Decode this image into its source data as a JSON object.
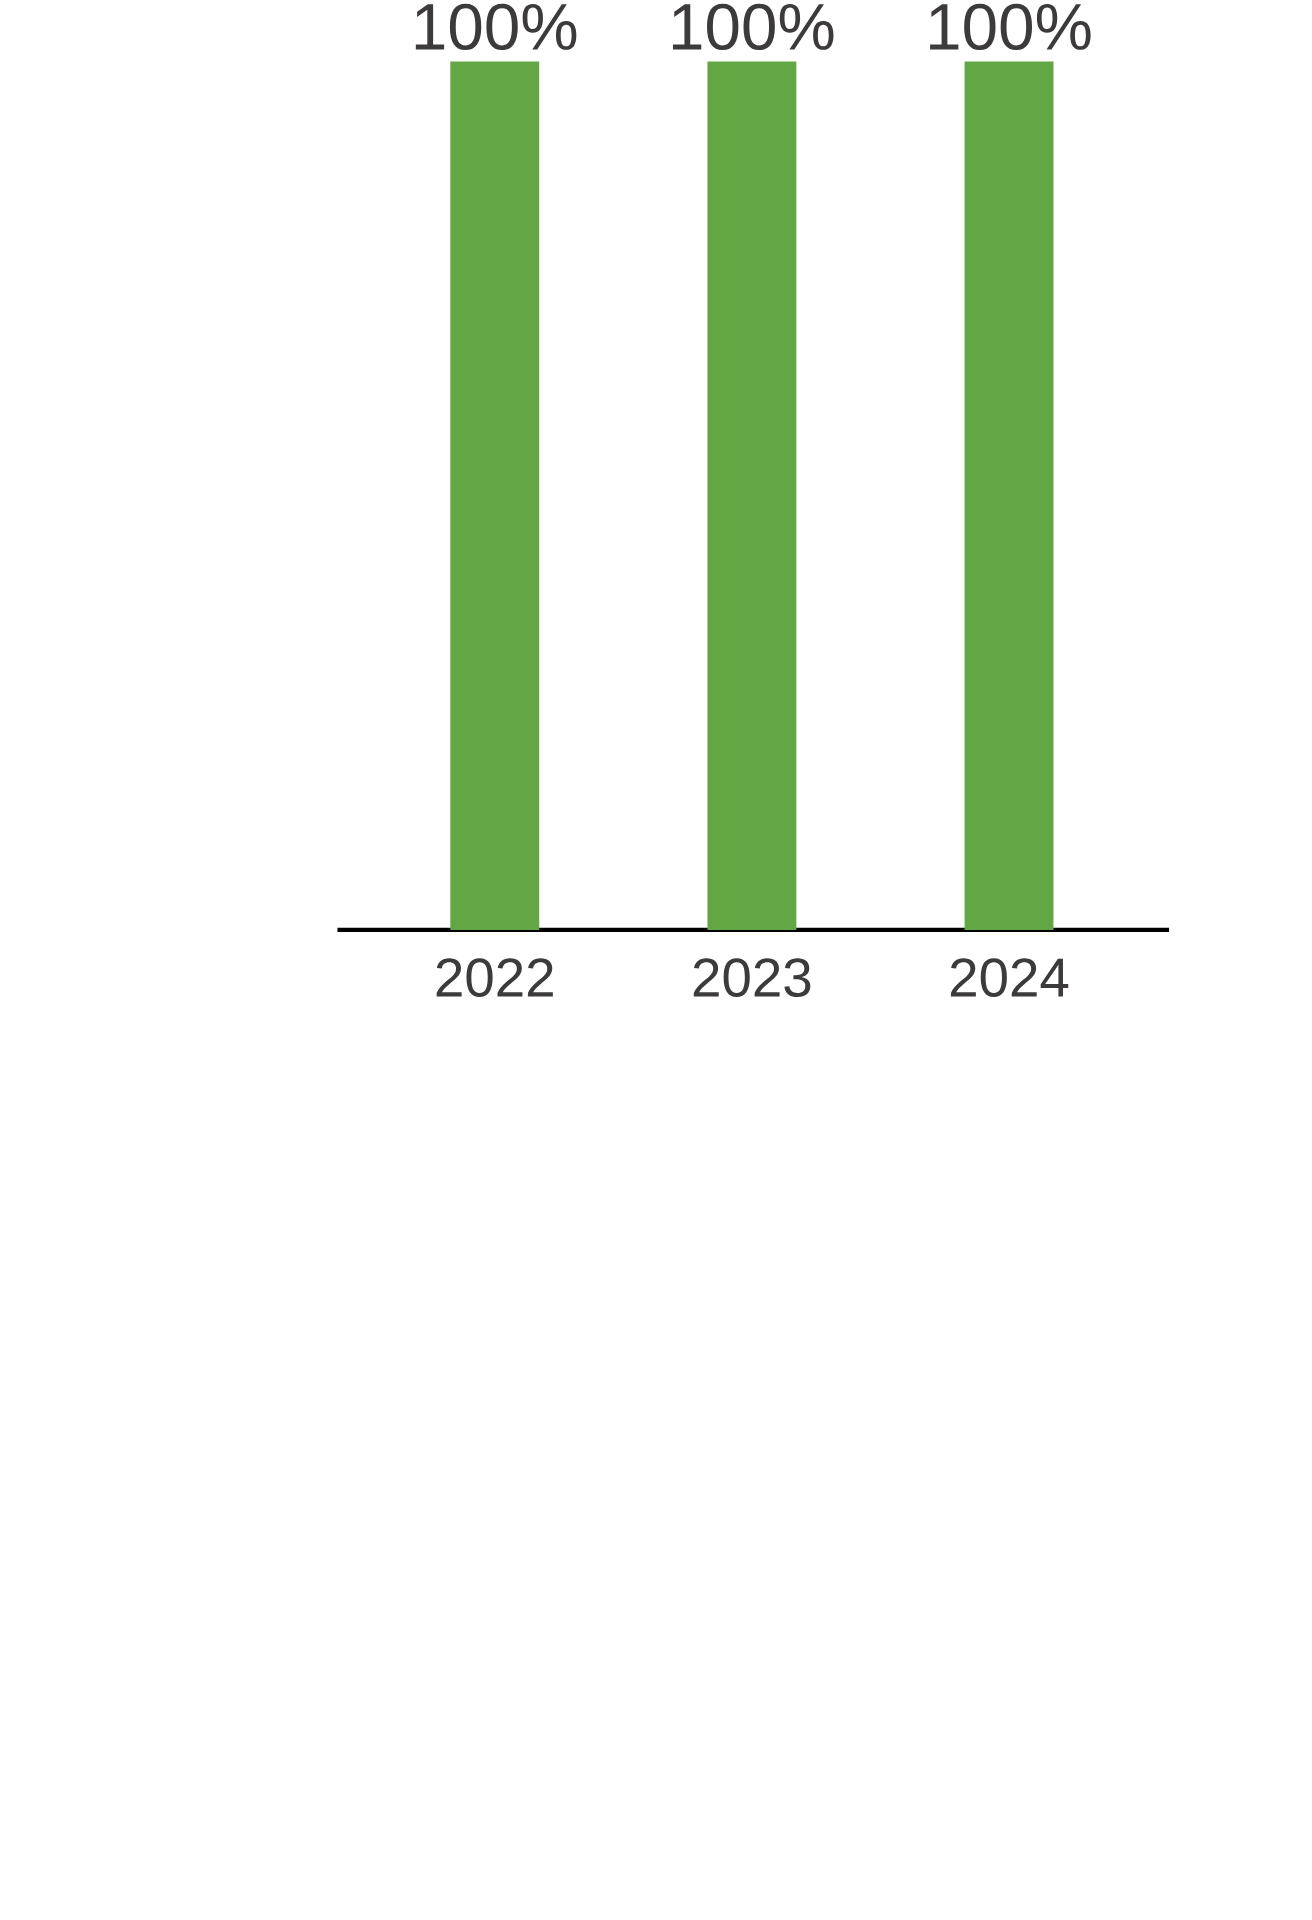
{
  "chart_data": {
    "type": "bar",
    "categories": [
      "2022",
      "2023",
      "2024"
    ],
    "values": [
      100,
      100,
      100
    ],
    "color": "#62a744",
    "ylim": [
      0,
      100
    ],
    "value_labels": [
      "100%",
      "100%",
      "100%"
    ]
  }
}
